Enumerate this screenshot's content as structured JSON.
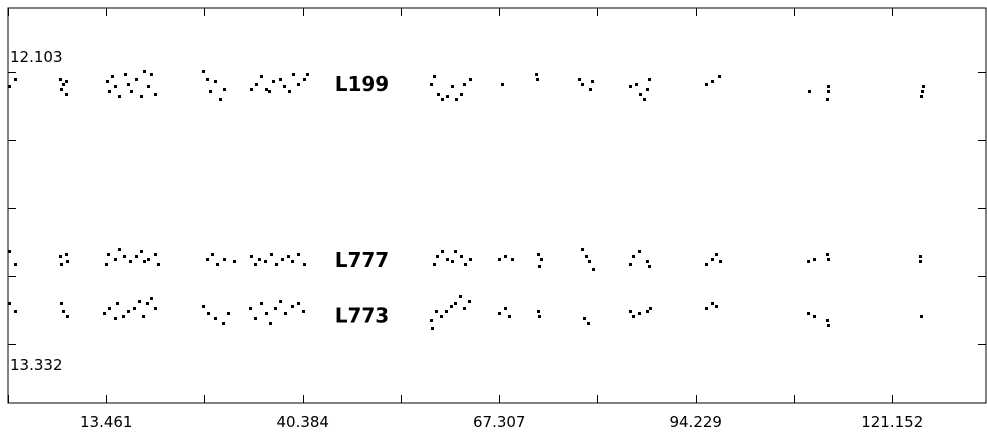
{
  "chart_data": {
    "type": "scatter",
    "title": "",
    "xlabel": "",
    "ylabel": "",
    "y_top_label": "12.103",
    "y_bottom_label": "13.332",
    "xlim": [
      0,
      134
    ],
    "ylim": [
      13.332,
      12.103
    ],
    "x_ticks": [
      13.461,
      40.384,
      67.307,
      94.229,
      121.152
    ],
    "x_tick_labels": [
      "13.461",
      "40.384",
      "67.307",
      "94.229",
      "121.152"
    ],
    "grid": false,
    "legend": "none",
    "series": [
      {
        "name": "L199",
        "label_x": 48.5,
        "y_center": 12.24,
        "points": [
          [
            0.2,
            12.25
          ],
          [
            1.0,
            12.22
          ],
          [
            7.1,
            12.22
          ],
          [
            7.3,
            12.26
          ],
          [
            7.5,
            12.24
          ],
          [
            7.9,
            12.28
          ],
          [
            8.0,
            12.23
          ],
          [
            13.5,
            12.23
          ],
          [
            13.8,
            12.27
          ],
          [
            14.3,
            12.21
          ],
          [
            14.6,
            12.25
          ],
          [
            15.2,
            12.29
          ],
          [
            16.0,
            12.2
          ],
          [
            16.4,
            12.24
          ],
          [
            16.8,
            12.27
          ],
          [
            17.5,
            12.22
          ],
          [
            18.2,
            12.29
          ],
          [
            18.6,
            12.19
          ],
          [
            19.2,
            12.25
          ],
          [
            19.6,
            12.2
          ],
          [
            20.1,
            12.28
          ],
          [
            26.7,
            12.19
          ],
          [
            27.2,
            12.22
          ],
          [
            27.7,
            12.27
          ],
          [
            28.4,
            12.23
          ],
          [
            29.1,
            12.3
          ],
          [
            29.6,
            12.26
          ],
          [
            33.3,
            12.26
          ],
          [
            34.0,
            12.24
          ],
          [
            34.7,
            12.21
          ],
          [
            35.3,
            12.26
          ],
          [
            35.7,
            12.27
          ],
          [
            36.3,
            12.23
          ],
          [
            37.2,
            12.22
          ],
          [
            37.8,
            12.25
          ],
          [
            38.5,
            12.27
          ],
          [
            39.0,
            12.2
          ],
          [
            39.8,
            12.24
          ],
          [
            40.5,
            12.22
          ],
          [
            41.0,
            12.2
          ],
          [
            58.0,
            12.24
          ],
          [
            58.3,
            12.21
          ],
          [
            58.9,
            12.28
          ],
          [
            59.5,
            12.3
          ],
          [
            60.2,
            12.29
          ],
          [
            60.8,
            12.25
          ],
          [
            61.4,
            12.3
          ],
          [
            62.0,
            12.28
          ],
          [
            62.5,
            12.24
          ],
          [
            63.3,
            12.22
          ],
          [
            67.7,
            12.24
          ],
          [
            72.3,
            12.2
          ],
          [
            72.5,
            12.22
          ],
          [
            78.3,
            12.22
          ],
          [
            78.7,
            12.24
          ],
          [
            79.7,
            12.26
          ],
          [
            80.0,
            12.23
          ],
          [
            85.2,
            12.25
          ],
          [
            86.0,
            12.24
          ],
          [
            86.6,
            12.28
          ],
          [
            87.2,
            12.3
          ],
          [
            87.5,
            12.26
          ],
          [
            87.8,
            12.22
          ],
          [
            95.7,
            12.24
          ],
          [
            96.5,
            12.23
          ],
          [
            97.4,
            12.21
          ],
          [
            109.7,
            12.27
          ],
          [
            112.2,
            12.3
          ],
          [
            112.3,
            12.27
          ],
          [
            112.4,
            12.25
          ],
          [
            125.1,
            12.29
          ],
          [
            125.2,
            12.27
          ],
          [
            125.3,
            12.25
          ]
        ]
      },
      {
        "name": "L777",
        "label_x": 48.5,
        "y_center": 12.955,
        "points": [
          [
            0.2,
            12.92
          ],
          [
            1.0,
            12.97
          ],
          [
            7.1,
            12.94
          ],
          [
            7.3,
            12.97
          ],
          [
            7.9,
            12.93
          ],
          [
            8.1,
            12.96
          ],
          [
            13.4,
            12.97
          ],
          [
            13.7,
            12.93
          ],
          [
            14.6,
            12.95
          ],
          [
            15.2,
            12.91
          ],
          [
            15.9,
            12.94
          ],
          [
            16.7,
            12.96
          ],
          [
            17.5,
            12.94
          ],
          [
            18.2,
            12.92
          ],
          [
            18.6,
            12.96
          ],
          [
            19.2,
            12.95
          ],
          [
            20.2,
            12.93
          ],
          [
            20.5,
            12.97
          ],
          [
            27.2,
            12.95
          ],
          [
            27.9,
            12.93
          ],
          [
            28.6,
            12.97
          ],
          [
            29.6,
            12.95
          ],
          [
            30.9,
            12.96
          ],
          [
            33.3,
            12.94
          ],
          [
            33.9,
            12.97
          ],
          [
            34.4,
            12.95
          ],
          [
            35.2,
            12.96
          ],
          [
            36.1,
            12.93
          ],
          [
            36.7,
            12.97
          ],
          [
            37.6,
            12.95
          ],
          [
            38.3,
            12.94
          ],
          [
            38.9,
            12.96
          ],
          [
            39.8,
            12.93
          ],
          [
            40.6,
            12.97
          ],
          [
            58.3,
            12.97
          ],
          [
            58.8,
            12.94
          ],
          [
            59.5,
            12.92
          ],
          [
            60.1,
            12.95
          ],
          [
            60.8,
            12.96
          ],
          [
            61.3,
            12.92
          ],
          [
            62.0,
            12.94
          ],
          [
            62.6,
            12.97
          ],
          [
            63.3,
            12.95
          ],
          [
            67.3,
            12.95
          ],
          [
            68.1,
            12.94
          ],
          [
            69.0,
            12.95
          ],
          [
            72.6,
            12.93
          ],
          [
            72.8,
            12.98
          ],
          [
            73.0,
            12.95
          ],
          [
            78.6,
            12.91
          ],
          [
            79.2,
            12.94
          ],
          [
            79.6,
            12.96
          ],
          [
            80.2,
            12.99
          ],
          [
            85.2,
            12.97
          ],
          [
            85.7,
            12.94
          ],
          [
            86.5,
            12.92
          ],
          [
            87.5,
            12.96
          ],
          [
            87.8,
            12.98
          ],
          [
            95.7,
            12.97
          ],
          [
            96.4,
            12.95
          ],
          [
            97.0,
            12.93
          ],
          [
            97.6,
            12.96
          ],
          [
            109.6,
            12.96
          ],
          [
            110.4,
            12.95
          ],
          [
            112.2,
            12.93
          ],
          [
            112.3,
            12.95
          ],
          [
            124.9,
            12.94
          ],
          [
            125.0,
            12.96
          ]
        ]
      },
      {
        "name": "L773",
        "label_x": 48.5,
        "y_center": 13.18,
        "points": [
          [
            0.2,
            13.13
          ],
          [
            1.0,
            13.16
          ],
          [
            7.3,
            13.13
          ],
          [
            7.6,
            13.16
          ],
          [
            8.1,
            13.18
          ],
          [
            13.2,
            13.17
          ],
          [
            13.9,
            13.15
          ],
          [
            14.6,
            13.19
          ],
          [
            15.0,
            13.13
          ],
          [
            15.8,
            13.18
          ],
          [
            16.5,
            13.16
          ],
          [
            17.3,
            13.15
          ],
          [
            17.9,
            13.12
          ],
          [
            18.5,
            13.18
          ],
          [
            19.1,
            13.13
          ],
          [
            19.6,
            13.11
          ],
          [
            20.2,
            13.15
          ],
          [
            26.7,
            13.14
          ],
          [
            27.4,
            13.17
          ],
          [
            28.4,
            13.19
          ],
          [
            29.4,
            13.21
          ],
          [
            30.1,
            13.17
          ],
          [
            33.1,
            13.15
          ],
          [
            33.8,
            13.19
          ],
          [
            34.6,
            13.13
          ],
          [
            35.3,
            13.17
          ],
          [
            35.9,
            13.21
          ],
          [
            36.6,
            13.15
          ],
          [
            37.3,
            13.12
          ],
          [
            38.0,
            13.17
          ],
          [
            38.9,
            13.14
          ],
          [
            39.8,
            13.13
          ],
          [
            40.4,
            13.16
          ],
          [
            57.9,
            13.2
          ],
          [
            58.1,
            13.23
          ],
          [
            58.7,
            13.16
          ],
          [
            59.3,
            13.18
          ],
          [
            60.0,
            13.16
          ],
          [
            60.7,
            13.14
          ],
          [
            61.2,
            13.13
          ],
          [
            61.9,
            13.1
          ],
          [
            62.5,
            13.15
          ],
          [
            63.2,
            13.12
          ],
          [
            67.3,
            13.17
          ],
          [
            68.1,
            13.15
          ],
          [
            68.7,
            13.18
          ],
          [
            72.6,
            13.16
          ],
          [
            72.8,
            13.18
          ],
          [
            78.9,
            13.19
          ],
          [
            79.5,
            13.21
          ],
          [
            85.2,
            13.16
          ],
          [
            85.7,
            13.18
          ],
          [
            86.5,
            13.17
          ],
          [
            87.5,
            13.16
          ],
          [
            87.9,
            13.15
          ],
          [
            95.7,
            13.15
          ],
          [
            96.5,
            13.13
          ],
          [
            97.0,
            13.14
          ],
          [
            109.6,
            13.17
          ],
          [
            110.4,
            13.18
          ],
          [
            112.2,
            13.2
          ],
          [
            112.3,
            13.22
          ],
          [
            125.1,
            13.18
          ]
        ]
      }
    ]
  }
}
